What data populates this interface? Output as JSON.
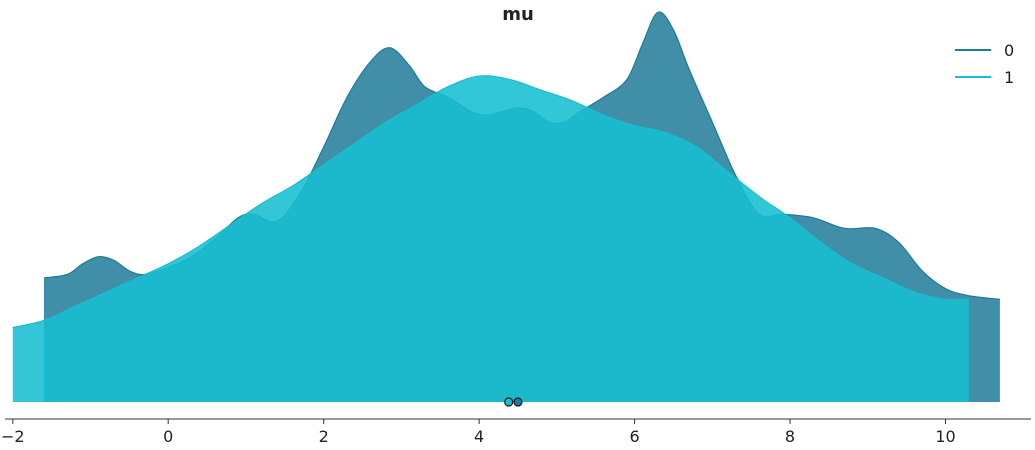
{
  "chart_data": {
    "type": "area",
    "title": "mu",
    "xlabel": "",
    "ylabel": "",
    "xlim": [
      -2.1,
      11.1
    ],
    "ylim": [
      0,
      1.05
    ],
    "xticks": [
      -2,
      0,
      2,
      4,
      6,
      8,
      10
    ],
    "tick_labels": [
      "−2",
      "0",
      "2",
      "4",
      "6",
      "8",
      "10"
    ],
    "grid": false,
    "legend_placement": "top-right",
    "series": [
      {
        "name": "0",
        "color": "#1f7a99",
        "fill": "#1f7a99",
        "x": [
          -1.6,
          -1.3,
          -1.1,
          -0.9,
          -0.7,
          -0.5,
          -0.3,
          0.0,
          0.3,
          0.6,
          0.9,
          1.1,
          1.4,
          1.7,
          2.0,
          2.3,
          2.6,
          2.85,
          3.1,
          3.3,
          3.6,
          3.9,
          4.1,
          4.3,
          4.5,
          4.7,
          4.9,
          5.1,
          5.3,
          5.6,
          5.9,
          6.1,
          6.3,
          6.5,
          6.7,
          7.0,
          7.3,
          7.6,
          7.9,
          8.3,
          8.7,
          9.1,
          9.4,
          9.7,
          10.0,
          10.3,
          10.7
        ],
        "y": [
          0.35,
          0.36,
          0.39,
          0.41,
          0.4,
          0.37,
          0.36,
          0.38,
          0.41,
          0.46,
          0.52,
          0.53,
          0.51,
          0.59,
          0.72,
          0.86,
          0.96,
          1.0,
          0.95,
          0.89,
          0.86,
          0.82,
          0.81,
          0.82,
          0.83,
          0.82,
          0.79,
          0.79,
          0.82,
          0.86,
          0.91,
          1.01,
          1.1,
          1.05,
          0.94,
          0.79,
          0.64,
          0.53,
          0.53,
          0.52,
          0.49,
          0.49,
          0.45,
          0.37,
          0.32,
          0.3,
          0.29
        ]
      },
      {
        "name": "1",
        "color": "#17bed0",
        "fill": "#17bed0",
        "x": [
          -2.0,
          -1.6,
          -1.2,
          -0.8,
          -0.4,
          0.0,
          0.4,
          0.8,
          1.2,
          1.6,
          2.0,
          2.4,
          2.8,
          3.2,
          3.6,
          4.0,
          4.4,
          4.8,
          5.2,
          5.6,
          6.0,
          6.4,
          6.8,
          7.2,
          7.6,
          8.0,
          8.4,
          8.8,
          9.2,
          9.6,
          10.0,
          10.3
        ],
        "y": [
          0.21,
          0.23,
          0.27,
          0.31,
          0.35,
          0.39,
          0.44,
          0.5,
          0.56,
          0.61,
          0.67,
          0.73,
          0.79,
          0.84,
          0.89,
          0.92,
          0.91,
          0.88,
          0.85,
          0.81,
          0.78,
          0.76,
          0.72,
          0.65,
          0.58,
          0.52,
          0.45,
          0.39,
          0.35,
          0.31,
          0.29,
          0.29
        ]
      }
    ],
    "point_estimates": [
      {
        "series": "1",
        "x": 4.38
      },
      {
        "series": "0",
        "x": 4.5
      }
    ]
  }
}
